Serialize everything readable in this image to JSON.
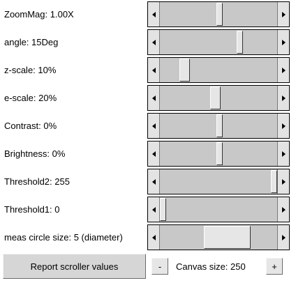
{
  "sliders": [
    {
      "key": "zoommag",
      "label": "ZoomMag: 1.00X",
      "position_fraction": 0.51,
      "thumb_fraction": 0.04
    },
    {
      "key": "angle",
      "label": "angle: 15Deg",
      "position_fraction": 0.69,
      "thumb_fraction": 0.04
    },
    {
      "key": "z-scale",
      "label": "z-scale: 10%",
      "position_fraction": 0.18,
      "thumb_fraction": 0.09
    },
    {
      "key": "e-scale",
      "label": "e-scale: 20%",
      "position_fraction": 0.47,
      "thumb_fraction": 0.09
    },
    {
      "key": "contrast",
      "label": "Contrast: 0%",
      "position_fraction": 0.51,
      "thumb_fraction": 0.04
    },
    {
      "key": "brightness",
      "label": "Brightness: 0%",
      "position_fraction": 0.51,
      "thumb_fraction": 0.04
    },
    {
      "key": "threshold2",
      "label": "Threshold2: 255",
      "position_fraction": 1.0,
      "thumb_fraction": 0.04
    },
    {
      "key": "threshold1",
      "label": "Threshold1: 0",
      "position_fraction": 0.0,
      "thumb_fraction": 0.04
    },
    {
      "key": "meas-circle",
      "label": "meas circle size: 5 (diameter)",
      "position_fraction": 0.62,
      "thumb_fraction": 0.4
    }
  ],
  "buttons": {
    "report_label": "Report scroller values",
    "minus_label": "-",
    "plus_label": "+"
  },
  "canvas_size_label": "Canvas size: 250"
}
